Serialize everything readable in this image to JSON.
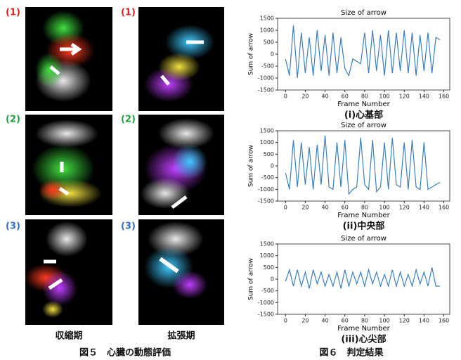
{
  "figure5": {
    "rows": [
      "(1)",
      "(2)",
      "(3)"
    ],
    "columns": [
      "収縮期",
      "拡張期"
    ],
    "caption": "図５　心臓の動態評価"
  },
  "figure6": {
    "caption": "図６　判定結果"
  },
  "chart_data": [
    {
      "type": "line",
      "title": "Size of arrow",
      "x_label": "Frame Number",
      "y_label": "Sum of arrow",
      "caption": "(i)心基部",
      "x": [
        0,
        4,
        8,
        12,
        16,
        20,
        24,
        28,
        32,
        36,
        40,
        44,
        48,
        52,
        56,
        60,
        64,
        68,
        72,
        76,
        80,
        84,
        88,
        92,
        96,
        100,
        104,
        108,
        112,
        116,
        120,
        124,
        128,
        132,
        136,
        140,
        144,
        148,
        152,
        156
      ],
      "series": [
        {
          "name": "Size of arrow",
          "color": "#3a7ebf",
          "values": [
            -200,
            -900,
            1200,
            -1000,
            900,
            -800,
            700,
            -900,
            1000,
            -700,
            800,
            -900,
            900,
            -800,
            700,
            -600,
            -900,
            -200,
            -300,
            -400,
            900,
            -800,
            1000,
            -700,
            800,
            -900,
            1000,
            -800,
            900,
            -700,
            1000,
            -800,
            900,
            -900,
            800,
            -700,
            900,
            -800,
            700,
            600
          ]
        }
      ],
      "xlim": [
        -8,
        166
      ],
      "xticks": [
        0,
        20,
        40,
        60,
        80,
        100,
        120,
        140,
        160
      ],
      "ylim": [
        -1500,
        1500
      ],
      "yticks": [
        -1500,
        -1000,
        -500,
        0,
        500,
        1000,
        1500
      ]
    },
    {
      "type": "line",
      "title": "Size of arrow",
      "x_label": "Frame Number",
      "y_label": "Sum of arrow",
      "caption": "(ii)中央部",
      "x": [
        0,
        4,
        8,
        12,
        16,
        20,
        24,
        28,
        32,
        36,
        40,
        44,
        48,
        52,
        56,
        60,
        64,
        68,
        72,
        76,
        80,
        84,
        88,
        92,
        96,
        100,
        104,
        108,
        112,
        116,
        120,
        124,
        128,
        132,
        136,
        140,
        144,
        148,
        152,
        156
      ],
      "series": [
        {
          "name": "Size of arrow",
          "color": "#3a7ebf",
          "values": [
            -300,
            -1000,
            1100,
            -900,
            1000,
            -800,
            800,
            -1000,
            900,
            -800,
            1300,
            -900,
            -1000,
            1000,
            -900,
            1100,
            -1200,
            -1000,
            -900,
            1200,
            -800,
            -1000,
            1100,
            -1100,
            -900,
            1000,
            -1000,
            1200,
            -800,
            -900,
            1000,
            -1000,
            1100,
            -900,
            -1000,
            1000,
            -1000,
            -900,
            -800,
            -700
          ]
        }
      ],
      "xlim": [
        -8,
        166
      ],
      "xticks": [
        0,
        20,
        40,
        60,
        80,
        100,
        120,
        140,
        160
      ],
      "ylim": [
        -1500,
        1500
      ],
      "yticks": [
        -1500,
        -1000,
        -500,
        0,
        500,
        1000,
        1500
      ]
    },
    {
      "type": "line",
      "title": "Size of arrow",
      "x_label": "Frame Number",
      "y_label": "Sum of arrow",
      "caption": "(iii)心尖部",
      "x": [
        0,
        4,
        8,
        12,
        16,
        20,
        24,
        28,
        32,
        36,
        40,
        44,
        48,
        52,
        56,
        60,
        64,
        68,
        72,
        76,
        80,
        84,
        88,
        92,
        96,
        100,
        104,
        108,
        112,
        116,
        120,
        124,
        128,
        132,
        136,
        140,
        144,
        148,
        152,
        156
      ],
      "series": [
        {
          "name": "Size of arrow",
          "color": "#3a7ebf",
          "values": [
            -100,
            400,
            -300,
            400,
            -300,
            300,
            -400,
            400,
            -200,
            300,
            -300,
            200,
            -300,
            300,
            -400,
            400,
            -300,
            300,
            -200,
            300,
            -300,
            400,
            -200,
            300,
            -300,
            200,
            -300,
            400,
            -300,
            300,
            -300,
            200,
            -300,
            400,
            -200,
            300,
            -300,
            500,
            -300,
            -300
          ]
        }
      ],
      "xlim": [
        -8,
        166
      ],
      "xticks": [
        0,
        20,
        40,
        60,
        80,
        100,
        120,
        140,
        160
      ],
      "ylim": [
        -1500,
        1500
      ],
      "yticks": [
        -1500,
        -1000,
        -500,
        0,
        500,
        1000,
        1500
      ]
    }
  ]
}
